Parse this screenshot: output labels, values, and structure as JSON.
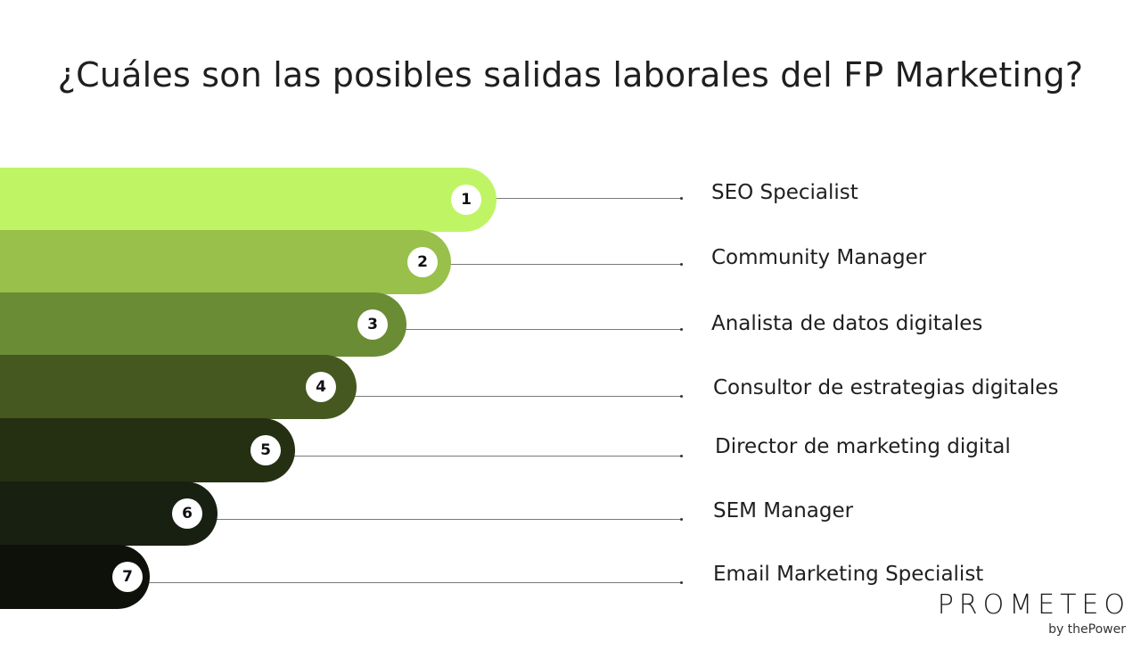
{
  "title": "¿Cuáles son las posibles salidas laborales del FP Marketing?",
  "items": [
    {
      "number": "1",
      "label": "SEO Specialist",
      "color": "#bff564"
    },
    {
      "number": "2",
      "label": "Community Manager",
      "color": "#98c04b"
    },
    {
      "number": "3",
      "label": "Analista de datos digitales",
      "color": "#6a8c35"
    },
    {
      "number": "4",
      "label": "Consultor de estrategias digitales",
      "color": "#45581f"
    },
    {
      "number": "5",
      "label": "Director de marketing digital",
      "color": "#252f12"
    },
    {
      "number": "6",
      "label": "SEM Manager",
      "color": "#182011"
    },
    {
      "number": "7",
      "label": "Email Marketing Specialist",
      "color": "#0d110a"
    }
  ],
  "brand": {
    "name": "PROMETEO",
    "tagline": "by thePower"
  }
}
